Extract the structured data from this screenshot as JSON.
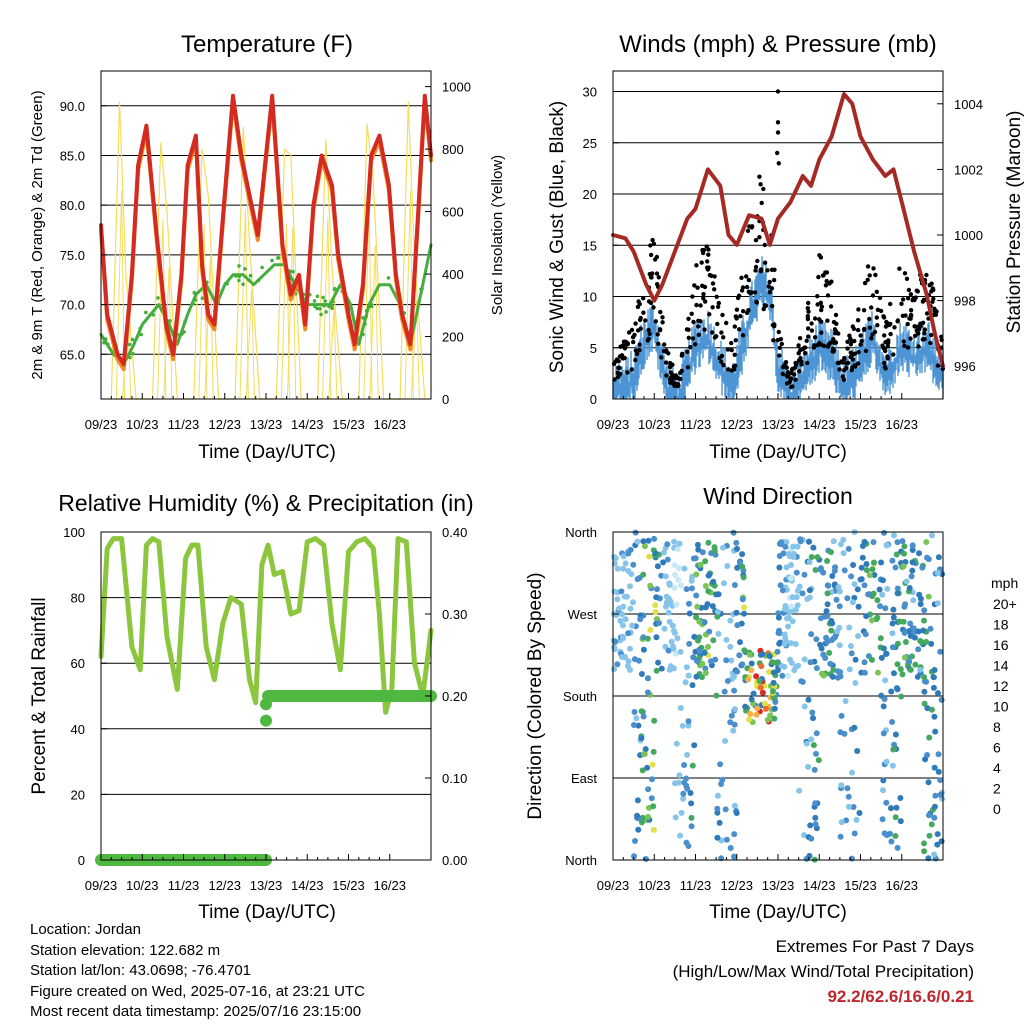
{
  "x_ticks": [
    "09/23",
    "10/23",
    "11/23",
    "12/23",
    "13/23",
    "14/23",
    "15/23",
    "16/23"
  ],
  "x_label": "Time (Day/UTC)",
  "charts": {
    "temperature": {
      "title": "Temperature (F)",
      "ylabel_left": "2m & 9m T (Red, Orange) & 2m Td (Green)",
      "ylabel_right": "Solar Insolation (Yellow)",
      "left_ticks": [
        "65.0",
        "70.0",
        "75.0",
        "80.0",
        "85.0",
        "90.0"
      ],
      "right_ticks": [
        "0",
        "200",
        "400",
        "600",
        "800",
        "1000"
      ]
    },
    "winds": {
      "title": "Winds (mph) & Pressure (mb)",
      "ylabel_left": "Sonic Wind & Gust (Blue, Black)",
      "ylabel_right": "Station Pressure (Maroon)",
      "left_ticks": [
        "0",
        "5",
        "10",
        "15",
        "20",
        "25",
        "30"
      ],
      "right_ticks": [
        "996",
        "998",
        "1000",
        "1002",
        "1004"
      ]
    },
    "humidity": {
      "title": "Relative Humidity (%) & Precipitation (in)",
      "ylabel_left": "Percent & Total Rainfall",
      "left_ticks": [
        "0",
        "20",
        "40",
        "60",
        "80",
        "100"
      ],
      "right_ticks": [
        "0.00",
        "0.10",
        "0.20",
        "0.30",
        "0.40"
      ]
    },
    "direction": {
      "title": "Wind Direction",
      "ylabel_left": "Direction (Colored By Speed)",
      "left_ticks": [
        "North",
        "East",
        "South",
        "West",
        "North"
      ],
      "legend_title": "mph",
      "legend_labels": [
        "0",
        "2",
        "4",
        "6",
        "8",
        "10",
        "12",
        "14",
        "16",
        "18",
        "20+"
      ],
      "legend_colors": [
        "#c6e8f7",
        "#86c4e9",
        "#4a8fcb",
        "#2f7ab9",
        "#45a95d",
        "#79c455",
        "#dfe04a",
        "#f6ae45",
        "#ef6a2b",
        "#d72a26",
        "#a51c1e"
      ]
    }
  },
  "chart_data": [
    {
      "type": "line",
      "title": "Temperature (F)",
      "xlabel": "Time (Day/UTC)",
      "ylabel": "2m & 9m T (Red, Orange) & 2m Td (Green)",
      "ylabel_right": "Solar Insolation (Yellow)",
      "categories": [
        "09/23",
        "10/23",
        "11/23",
        "12/23",
        "13/23",
        "14/23",
        "15/23",
        "16/23"
      ],
      "ylim": [
        60.5,
        93.5
      ],
      "ylim_right": [
        0,
        1050
      ],
      "series": [
        {
          "color": "#d32a22",
          "x": [
            0,
            0.15,
            0.4,
            0.55,
            0.75,
            0.9,
            1.1,
            1.35,
            1.58,
            1.75,
            1.95,
            2.1,
            2.3,
            2.45,
            2.6,
            2.75,
            2.98,
            3.2,
            3.4,
            3.6,
            3.8,
            3.95,
            4.15,
            4.4,
            4.6,
            4.8,
            4.95,
            5.15,
            5.35,
            5.6,
            5.75,
            6.0,
            6.15,
            6.35,
            6.55,
            6.75,
            6.98,
            7.15,
            7.3,
            7.5,
            7.7,
            7.85,
            8.0
          ],
          "values": [
            78,
            69,
            65,
            64,
            73,
            84,
            88,
            77,
            68,
            65,
            73,
            84,
            87,
            74,
            69,
            68,
            80,
            91,
            85,
            81,
            77,
            83,
            91,
            76,
            71,
            73,
            68,
            80,
            85,
            82,
            75,
            69,
            66,
            72,
            85,
            87,
            82,
            73,
            69,
            66,
            80,
            91,
            85
          ]
        },
        {
          "color": "#f08c2a",
          "x": [
            0,
            0.15,
            0.4,
            0.55,
            0.75,
            0.9,
            1.1,
            1.35,
            1.58,
            1.75,
            1.95,
            2.1,
            2.3,
            2.45,
            2.6,
            2.75,
            2.98,
            3.2,
            3.4,
            3.6,
            3.8,
            3.95,
            4.15,
            4.4,
            4.6,
            4.8,
            4.95,
            5.15,
            5.35,
            5.6,
            5.75,
            6.0,
            6.15,
            6.35,
            6.55,
            6.75,
            6.98,
            7.15,
            7.3,
            7.5,
            7.7,
            7.85,
            8.0
          ],
          "values": [
            77.5,
            68.5,
            64.5,
            63.5,
            72.5,
            83.5,
            87.5,
            76.5,
            67.5,
            64.5,
            72.5,
            83.5,
            86.5,
            73.5,
            68.5,
            67.5,
            79.5,
            90.5,
            84.5,
            80.5,
            76.5,
            82.5,
            90.5,
            75.5,
            70.5,
            72.5,
            67.5,
            79.5,
            84.5,
            81.5,
            74.5,
            68.5,
            65.5,
            71.5,
            84.5,
            86.5,
            81.5,
            72.5,
            68.5,
            65.5,
            79.5,
            90.5,
            84.5
          ]
        },
        {
          "color": "#44ad3c",
          "x": [
            0,
            0.3,
            0.55,
            0.8,
            1.0,
            1.2,
            1.4,
            1.65,
            1.85,
            2.1,
            2.3,
            2.55,
            2.8,
            3.0,
            3.2,
            3.45,
            3.7,
            3.95,
            4.2,
            4.45,
            4.7,
            5.0,
            5.3,
            5.55,
            5.8,
            6.05,
            6.25,
            6.5,
            6.75,
            7.0,
            7.25,
            7.5,
            7.7,
            7.85,
            8.0
          ],
          "values": [
            67,
            65,
            64,
            66,
            68,
            69,
            70,
            68,
            66,
            69,
            71,
            72,
            70,
            72,
            73,
            73,
            72,
            73,
            74,
            74,
            72,
            70,
            70,
            70,
            72,
            70,
            66,
            70,
            72,
            72,
            70,
            66,
            70,
            73,
            76
          ]
        },
        {
          "color": "#f4dc5c",
          "axis": "right",
          "x": [
            0.25,
            0.45,
            0.6,
            0.85,
            1.25,
            1.45,
            1.6,
            1.85,
            2.25,
            2.45,
            2.6,
            2.85,
            3.25,
            3.45,
            3.6,
            3.85,
            4.25,
            4.45,
            4.6,
            4.85,
            5.25,
            5.45,
            5.6,
            5.85,
            6.25,
            6.45,
            6.6,
            6.85,
            7.25,
            7.45,
            7.6,
            7.85
          ],
          "values": [
            0,
            950,
            400,
            0,
            0,
            820,
            600,
            0,
            0,
            800,
            650,
            0,
            0,
            870,
            500,
            0,
            0,
            800,
            780,
            0,
            0,
            830,
            420,
            0,
            0,
            880,
            700,
            0,
            0,
            950,
            450,
            0
          ]
        }
      ]
    },
    {
      "type": "scatter",
      "title": "Winds (mph) & Pressure (mb)",
      "xlabel": "Time (Day/UTC)",
      "ylabel": "Sonic Wind & Gust (Blue, Black)",
      "ylabel_right": "Station Pressure (Maroon)",
      "categories": [
        "09/23",
        "10/23",
        "11/23",
        "12/23",
        "13/23",
        "14/23",
        "15/23",
        "16/23"
      ],
      "ylim": [
        0,
        32
      ],
      "ylim_right": [
        995,
        1005
      ],
      "series": [
        {
          "color": "#4c94d4",
          "x": [
            0,
            0.3,
            0.5,
            0.8,
            1.0,
            1.3,
            1.6,
            2.0,
            2.3,
            2.6,
            2.9,
            3.2,
            3.4,
            3.6,
            3.8,
            4.0,
            4.3,
            4.6,
            5.0,
            5.3,
            5.6,
            6.0,
            6.3,
            6.6,
            7.0,
            7.3,
            7.6,
            8.0
          ],
          "values": [
            2,
            2,
            3,
            7,
            8,
            2,
            1,
            6,
            7,
            4,
            2,
            7,
            10,
            12,
            11,
            4,
            1,
            3,
            6,
            5,
            2,
            4,
            7,
            3,
            6,
            5,
            6,
            3
          ]
        },
        {
          "color": "#000000",
          "x": [
            0,
            0.3,
            0.5,
            0.8,
            1.0,
            1.3,
            1.6,
            2.0,
            2.3,
            2.6,
            2.9,
            3.2,
            3.4,
            3.6,
            3.8,
            4.0,
            4.3,
            4.6,
            5.0,
            5.3,
            5.6,
            6.0,
            6.3,
            6.6,
            7.0,
            7.3,
            7.6,
            8.0
          ],
          "values": [
            4,
            5,
            6,
            12,
            15,
            4,
            2,
            11,
            13,
            8,
            5,
            13,
            17,
            19,
            17,
            7,
            2,
            6,
            12,
            10,
            4,
            8,
            13,
            6,
            12,
            9,
            12,
            5
          ]
        },
        {
          "color": "#a52a26",
          "axis": "right",
          "x": [
            0,
            0.3,
            0.5,
            0.8,
            1.0,
            1.2,
            1.5,
            1.8,
            2.0,
            2.3,
            2.6,
            2.8,
            3.0,
            3.3,
            3.6,
            3.8,
            4.0,
            4.3,
            4.6,
            4.8,
            5.0,
            5.3,
            5.6,
            5.8,
            6.0,
            6.3,
            6.6,
            6.8,
            7.0,
            7.3,
            7.6,
            7.8,
            8.0
          ],
          "values": [
            1000,
            999.9,
            999.5,
            998.5,
            998.0,
            998.5,
            999.5,
            1000.5,
            1000.8,
            1002.0,
            1001.5,
            1000.0,
            999.7,
            1000.6,
            1000.5,
            999.7,
            1000.5,
            1001.0,
            1001.8,
            1001.5,
            1002.3,
            1003.0,
            1004.3,
            1004.0,
            1003.0,
            1002.3,
            1001.8,
            1002.0,
            1001.0,
            999.5,
            998.2,
            997.0,
            996.0
          ]
        }
      ]
    },
    {
      "type": "line",
      "title": "Relative Humidity (%) & Precipitation (in)",
      "xlabel": "Time (Day/UTC)",
      "ylabel": "Percent & Total Rainfall",
      "categories": [
        "09/23",
        "10/23",
        "11/23",
        "12/23",
        "13/23",
        "14/23",
        "15/23",
        "16/23"
      ],
      "ylim": [
        0,
        100
      ],
      "ylim_right": [
        0,
        0.4
      ],
      "series": [
        {
          "color": "#8cc63f",
          "x": [
            0,
            0.15,
            0.3,
            0.5,
            0.75,
            0.95,
            1.1,
            1.25,
            1.4,
            1.6,
            1.85,
            2.05,
            2.2,
            2.35,
            2.55,
            2.75,
            2.95,
            3.15,
            3.4,
            3.6,
            3.75,
            3.9,
            4.05,
            4.2,
            4.4,
            4.6,
            4.8,
            5.0,
            5.2,
            5.4,
            5.6,
            5.8,
            6.0,
            6.2,
            6.4,
            6.6,
            6.75,
            6.9,
            7.05,
            7.2,
            7.4,
            7.6,
            7.8,
            8.0
          ],
          "values": [
            62,
            95,
            98,
            98,
            65,
            58,
            96,
            98,
            97,
            68,
            52,
            92,
            96,
            96,
            65,
            55,
            72,
            80,
            78,
            55,
            48,
            90,
            96,
            87,
            88,
            75,
            76,
            97,
            98,
            96,
            72,
            58,
            94,
            97,
            98,
            95,
            75,
            45,
            52,
            98,
            97,
            60,
            50,
            70
          ]
        },
        {
          "color": "#4fb840",
          "axis": "right",
          "x": [
            0,
            4.0,
            4.0,
            4.05,
            8.0
          ],
          "values": [
            0,
            0,
            0.17,
            0.2,
            0.2
          ]
        }
      ]
    },
    {
      "type": "scatter",
      "title": "Wind Direction",
      "xlabel": "Time (Day/UTC)",
      "ylabel": "Direction (Colored By Speed)",
      "categories": [
        "09/23",
        "10/23",
        "11/23",
        "12/23",
        "13/23",
        "14/23",
        "15/23",
        "16/23"
      ],
      "y_ticks": [
        "North",
        "East",
        "South",
        "West",
        "North"
      ],
      "ylim": [
        0,
        360
      ],
      "legend_title": "mph",
      "legend_entries": [
        "0",
        "2",
        "4",
        "6",
        "8",
        "10",
        "12",
        "14",
        "16",
        "18",
        "20+"
      ]
    }
  ],
  "info": {
    "location": "Location: Jordan",
    "elevation": "Station elevation: 122.682 m",
    "latlon": "Station lat/lon: 43.0698; -76.4701",
    "created": "Figure created on Wed, 2025-07-16, at 23:21 UTC",
    "recent": "Most recent data timestamp: 2025/07/16 23:15:00"
  },
  "extremes": {
    "line1": "Extremes For Past 7 Days",
    "line2": "(High/Low/Max Wind/Total Precipitation)",
    "values": "92.2/62.6/16.6/0.21"
  }
}
